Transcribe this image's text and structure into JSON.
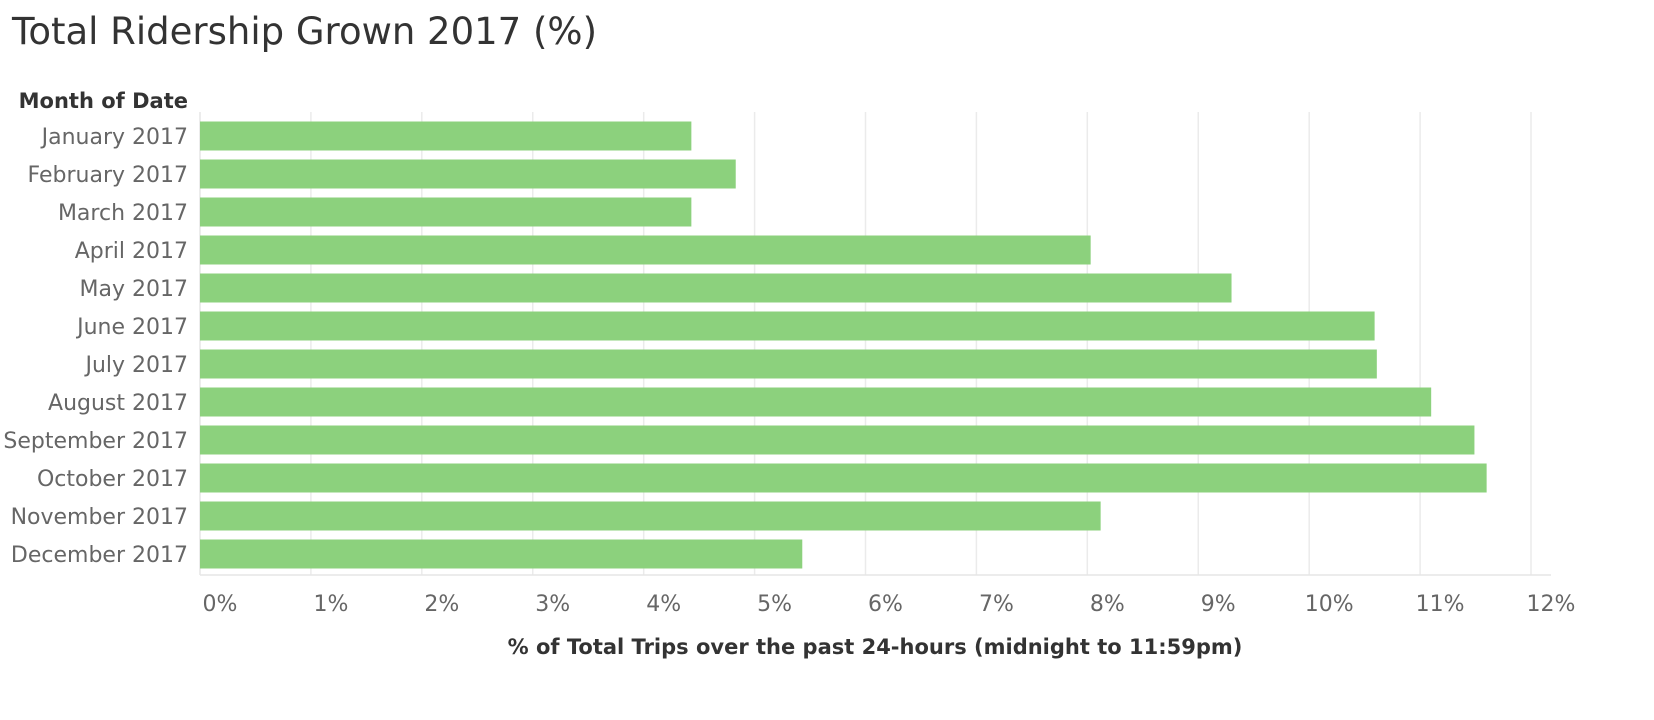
{
  "chart_data": {
    "type": "bar",
    "orientation": "horizontal",
    "title": "Total Ridership Grown 2017 (%)",
    "row_header": "Month of Date",
    "xlabel": "% of Total Trips over the past 24-hours (midnight to 11:59pm)",
    "ylabel": "",
    "categories": [
      "January 2017",
      "February 2017",
      "March 2017",
      "April 2017",
      "May 2017",
      "June 2017",
      "July 2017",
      "August 2017",
      "September 2017",
      "October 2017",
      "November 2017",
      "December 2017"
    ],
    "values": [
      4.43,
      4.83,
      4.43,
      8.03,
      9.3,
      10.59,
      10.61,
      11.1,
      11.49,
      11.6,
      8.12,
      5.43
    ],
    "xlim": [
      0,
      12
    ],
    "x_ticks": [
      0,
      1,
      2,
      3,
      4,
      5,
      6,
      7,
      8,
      9,
      10,
      11,
      12
    ],
    "x_tick_labels": [
      "0%",
      "1%",
      "2%",
      "3%",
      "4%",
      "5%",
      "6%",
      "7%",
      "8%",
      "9%",
      "10%",
      "11%",
      "12%"
    ],
    "grid": true,
    "legend": "none",
    "bar_color": "#8cd17d"
  }
}
